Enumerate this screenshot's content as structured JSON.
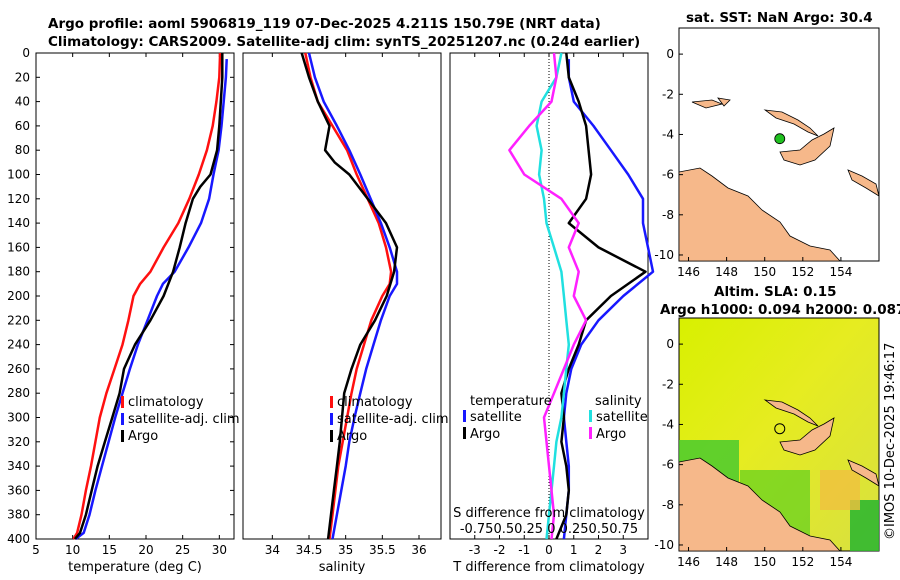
{
  "titles": {
    "line1": "Argo profile: aoml 5906819_119 07-Dec-2025 4.211S 150.79E (NRT data)",
    "line2": "Climatology: CARS2009. Satellite-adj clim: synTS_20251207.nc (0.24d earlier)",
    "sst_map": "sat. SST: NaN Argo: 30.4",
    "sla_map_1": "Altim. SLA: 0.15",
    "sla_map_2": "Argo h1000: 0.094 h2000: 0.087",
    "stamp": "©IMOS 10-Dec-2025 19:46:17"
  },
  "colors": {
    "climatology": "#ff1010",
    "satellite": "#1818ff",
    "argo": "#000000",
    "sat_salinity": "#20e0e0",
    "salinity_diff": "#ff20ff",
    "argo_marker": "#20c020",
    "land": "#f6b88a"
  },
  "chart_data": [
    {
      "name": "temperature-panel",
      "type": "line",
      "xlabel": "temperature (deg C)",
      "ylabel": "",
      "xlim": [
        5,
        32
      ],
      "ylim": [
        400,
        0
      ],
      "xticks": [
        "5",
        "10",
        "15",
        "20",
        "25",
        "30"
      ],
      "yticks": [
        "0",
        "20",
        "40",
        "60",
        "80",
        "100",
        "120",
        "140",
        "160",
        "180",
        "200",
        "220",
        "240",
        "260",
        "280",
        "300",
        "320",
        "340",
        "360",
        "380",
        "400"
      ],
      "legend": [
        "climatology",
        "satellite-adj. clim",
        "Argo"
      ],
      "series": [
        {
          "name": "climatology",
          "color_key": "climatology",
          "x": [
            30.1,
            30.0,
            29.6,
            29.1,
            28.3,
            27.2,
            25.9,
            24.4,
            22.4,
            20.6,
            19.2,
            18.3,
            17.6,
            16.8,
            15.7,
            14.6,
            13.7,
            13.1,
            12.5,
            11.8,
            11.2,
            10.6,
            10.1
          ],
          "depth": [
            0,
            20,
            40,
            60,
            80,
            100,
            120,
            140,
            160,
            180,
            190,
            200,
            220,
            240,
            260,
            280,
            300,
            320,
            340,
            360,
            380,
            395,
            400
          ]
        },
        {
          "name": "satellite-adj. clim",
          "color_key": "satellite",
          "x": [
            31.0,
            30.9,
            30.6,
            30.3,
            29.9,
            29.2,
            28.6,
            27.5,
            25.8,
            23.9,
            22.3,
            21.5,
            20.2,
            18.9,
            17.8,
            16.8,
            15.8,
            14.9,
            14.0,
            13.1,
            12.3,
            11.5,
            10.4
          ],
          "depth": [
            5,
            20,
            40,
            60,
            80,
            100,
            120,
            140,
            160,
            180,
            190,
            200,
            220,
            240,
            260,
            280,
            300,
            320,
            340,
            360,
            380,
            395,
            400
          ]
        },
        {
          "name": "Argo",
          "color_key": "argo",
          "x": [
            30.4,
            30.4,
            30.2,
            30.0,
            29.7,
            28.8,
            27.4,
            26.4,
            25.4,
            24.6,
            23.7,
            22.4,
            20.6,
            18.5,
            17.0,
            16.4,
            15.4,
            14.4,
            13.4,
            12.6,
            11.8,
            11.0,
            10.3
          ],
          "depth": [
            0,
            20,
            40,
            60,
            80,
            100,
            110,
            120,
            140,
            160,
            180,
            200,
            220,
            240,
            260,
            280,
            300,
            320,
            340,
            360,
            380,
            395,
            400
          ]
        }
      ]
    },
    {
      "name": "salinity-panel",
      "type": "line",
      "xlabel": "salinity",
      "ylabel": "",
      "xlim": [
        33.6,
        36.3
      ],
      "ylim": [
        400,
        0
      ],
      "xticks": [
        "34",
        "34.5",
        "35",
        "35.5",
        "36"
      ],
      "legend": [
        "climatology",
        "satellite-adj. clim",
        "Argo"
      ],
      "series": [
        {
          "name": "climatology",
          "color_key": "climatology",
          "x": [
            34.45,
            34.52,
            34.62,
            34.82,
            35.02,
            35.15,
            35.3,
            35.45,
            35.55,
            35.62,
            35.6,
            35.5,
            35.35,
            35.25,
            35.15,
            35.08,
            35.02,
            34.96,
            34.9,
            34.86,
            34.82,
            34.78
          ],
          "depth": [
            0,
            20,
            40,
            60,
            80,
            100,
            120,
            140,
            160,
            180,
            190,
            200,
            220,
            240,
            260,
            280,
            300,
            320,
            340,
            360,
            380,
            400
          ]
        },
        {
          "name": "satellite-adj. clim",
          "color_key": "satellite",
          "x": [
            34.5,
            34.58,
            34.7,
            34.88,
            35.05,
            35.2,
            35.34,
            35.48,
            35.6,
            35.7,
            35.7,
            35.6,
            35.48,
            35.38,
            35.28,
            35.2,
            35.12,
            35.05,
            35.0,
            34.94,
            34.88,
            34.82
          ],
          "depth": [
            0,
            20,
            40,
            60,
            80,
            100,
            120,
            140,
            160,
            180,
            190,
            200,
            220,
            240,
            260,
            280,
            300,
            320,
            340,
            360,
            380,
            400
          ]
        },
        {
          "name": "Argo",
          "color_key": "argo",
          "x": [
            34.4,
            34.5,
            34.62,
            34.78,
            34.72,
            34.85,
            35.05,
            35.3,
            35.55,
            35.7,
            35.66,
            35.56,
            35.4,
            35.2,
            35.08,
            34.98,
            34.95,
            34.92,
            34.88,
            34.84,
            34.8,
            34.76
          ],
          "depth": [
            0,
            20,
            40,
            60,
            80,
            90,
            100,
            120,
            140,
            160,
            180,
            200,
            220,
            240,
            260,
            280,
            300,
            320,
            340,
            360,
            380,
            400
          ]
        }
      ]
    },
    {
      "name": "difference-panel",
      "type": "line",
      "xlabel": "T difference from climatology",
      "xlabel_top": "S difference from climatology",
      "xticks": [
        "-3",
        "-2",
        "-1",
        "0",
        "1",
        "2",
        "3"
      ],
      "xticks_top": "-0.750.50.25 0 0.250.50.75",
      "xlim": [
        -4.0,
        4.0
      ],
      "ylim": [
        400,
        0
      ],
      "legend_titles": [
        "temperature",
        "salinity"
      ],
      "legend_left": [
        "satellite",
        "Argo"
      ],
      "legend_right": [
        "satellite",
        "Argo"
      ],
      "series": [
        {
          "name": "T satellite",
          "color_key": "satellite",
          "x": [
            0.8,
            0.8,
            1.0,
            1.8,
            2.5,
            3.2,
            3.8,
            3.8,
            4.0,
            4.2,
            3.0,
            2.0,
            1.3,
            0.9,
            0.7,
            0.6,
            0.7,
            0.8,
            0.8,
            0.7,
            0.6
          ],
          "depth": [
            5,
            20,
            40,
            60,
            80,
            100,
            120,
            140,
            160,
            180,
            200,
            220,
            240,
            260,
            280,
            300,
            320,
            340,
            360,
            380,
            400
          ]
        },
        {
          "name": "T Argo",
          "color_key": "argo",
          "x": [
            0.7,
            0.8,
            1.2,
            1.5,
            1.6,
            1.7,
            1.5,
            0.8,
            2.0,
            3.9,
            2.5,
            1.5,
            1.2,
            0.8,
            0.5,
            0.6,
            0.5,
            0.7,
            0.8,
            0.7,
            0.3
          ],
          "depth": [
            0,
            20,
            40,
            60,
            80,
            100,
            120,
            140,
            160,
            180,
            200,
            220,
            240,
            260,
            280,
            300,
            320,
            340,
            360,
            380,
            400
          ]
        },
        {
          "name": "S satellite",
          "color_key": "sat_salinity",
          "x": [
            0.5,
            0.3,
            -0.3,
            -0.5,
            -0.3,
            -0.4,
            -0.2,
            -0.1,
            0.2,
            0.5,
            0.6,
            0.7,
            0.8,
            0.7,
            0.6,
            0.5,
            0.3,
            0.2,
            0.1,
            0.0,
            -0.1
          ],
          "depth": [
            0,
            20,
            40,
            60,
            80,
            100,
            120,
            140,
            160,
            180,
            200,
            220,
            240,
            260,
            280,
            300,
            320,
            340,
            360,
            380,
            400
          ]
        },
        {
          "name": "S Argo",
          "color_key": "salinity_diff",
          "x": [
            0.2,
            0.3,
            0.1,
            -0.8,
            -1.6,
            -1.0,
            0.5,
            1.2,
            0.8,
            1.2,
            1.0,
            1.5,
            1.0,
            0.6,
            0.2,
            -0.2,
            -0.1,
            0.0,
            0.1,
            0.2,
            0.1
          ],
          "depth": [
            0,
            20,
            40,
            60,
            80,
            100,
            120,
            140,
            160,
            180,
            200,
            220,
            240,
            260,
            280,
            300,
            320,
            340,
            360,
            380,
            400
          ]
        }
      ]
    },
    {
      "name": "sst-map",
      "type": "map",
      "xticks": [
        "146",
        "148",
        "150",
        "152",
        "154"
      ],
      "yticks": [
        "0",
        "-2",
        "-4",
        "-6",
        "-8",
        "-10"
      ],
      "xlim": [
        145.5,
        156.0
      ],
      "ylim": [
        -10.3,
        1.3
      ],
      "argo_position": {
        "lon": 150.79,
        "lat": -4.211
      }
    },
    {
      "name": "sla-map",
      "type": "heatmap",
      "xticks": [
        "146",
        "148",
        "150",
        "152",
        "154"
      ],
      "yticks": [
        "0",
        "-2",
        "-4",
        "-6",
        "-8",
        "-10"
      ],
      "xlim": [
        145.5,
        156.0
      ],
      "ylim": [
        -10.3,
        1.3
      ],
      "argo_position": {
        "lon": 150.79,
        "lat": -4.211
      }
    }
  ]
}
